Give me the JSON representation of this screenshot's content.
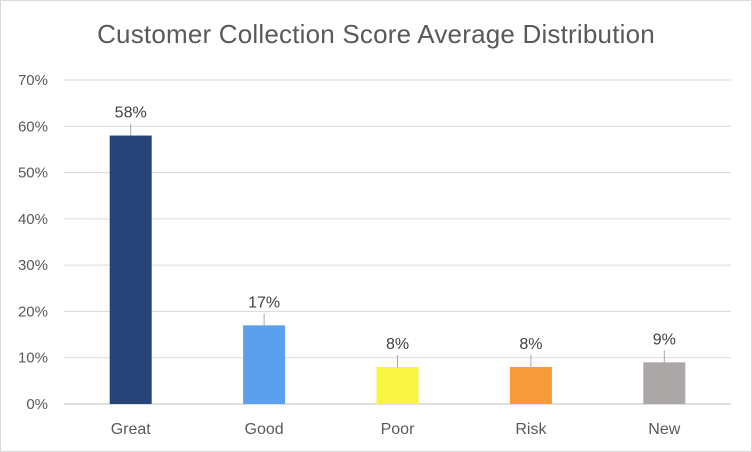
{
  "chart_data": {
    "type": "bar",
    "title": "Customer Collection Score Average Distribution",
    "xlabel": "",
    "ylabel": "",
    "categories": [
      "Great",
      "Good",
      "Poor",
      "Risk",
      "New"
    ],
    "values": [
      58,
      17,
      8,
      8,
      9
    ],
    "data_labels": [
      "58%",
      "17%",
      "8%",
      "8%",
      "9%"
    ],
    "colors": [
      "#264478",
      "#5aa0ef",
      "#f7f442",
      "#f79a3a",
      "#aca7a7"
    ],
    "ylim": [
      0,
      70
    ],
    "yticks": [
      0,
      10,
      20,
      30,
      40,
      50,
      60,
      70
    ],
    "ytick_labels": [
      "0%",
      "10%",
      "20%",
      "30%",
      "40%",
      "50%",
      "60%",
      "70%"
    ],
    "grid": true,
    "legend": "none"
  }
}
